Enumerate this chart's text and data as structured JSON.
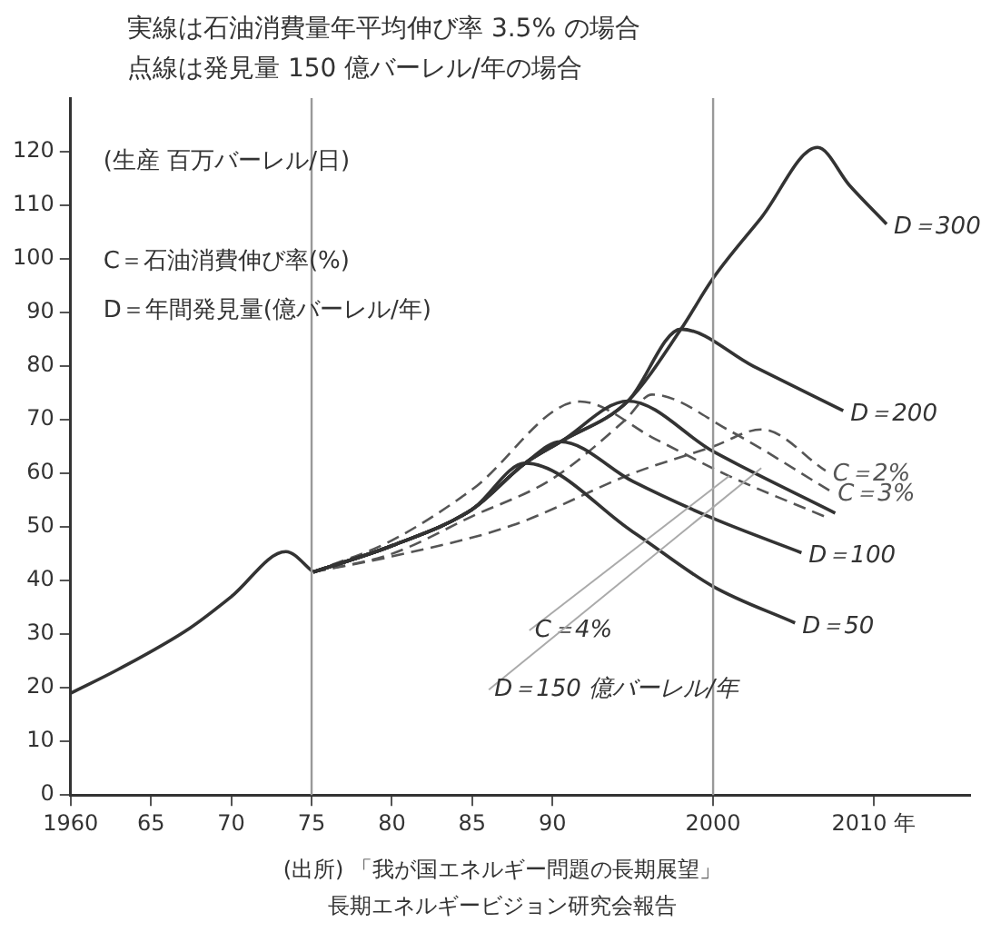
{
  "chart_data": {
    "type": "line",
    "title": "実線は石油消費量年平均伸び率 3.5% の場合",
    "subtitle": "点線は発見量 150 億バーレル/年の場合",
    "ylabel": "(生産 百万バーレル/日)",
    "annotations": [
      "C＝石油消費伸び率(%)",
      "D＝年間発見量(億バーレル/年)",
      "(出所) 「我が国エネルギー問題の長期展望」",
      "長期エネルギービジョン研究会報告",
      {
        "text": "C＝4%",
        "x": 2001,
        "y": 59.5
      },
      {
        "text": "D＝150 億バーレル/年",
        "x": 2003,
        "y": 61
      }
    ],
    "xlim": [
      1960,
      2016
    ],
    "ylim": [
      0,
      130
    ],
    "xticks": [
      1960,
      {
        "value": 1965,
        "label": "65"
      },
      {
        "value": 1970,
        "label": "70"
      },
      {
        "value": 1975,
        "label": "75"
      },
      {
        "value": 1980,
        "label": "80"
      },
      {
        "value": 1985,
        "label": "85"
      },
      {
        "value": 1990,
        "label": "90"
      },
      2000,
      {
        "value": 2010,
        "label": "2010 年"
      }
    ],
    "yticks": [
      0,
      10,
      20,
      30,
      40,
      50,
      60,
      70,
      80,
      90,
      100,
      110,
      120
    ],
    "grid": false,
    "legend": false,
    "marker": "none",
    "ref_lines": [
      {
        "axis": "x",
        "value": 1975,
        "color": "#999999"
      },
      {
        "axis": "x",
        "value": 2000,
        "color": "#999999"
      }
    ],
    "series": [
      {
        "color": "#333333",
        "line_style": "solid",
        "x": [
          1960,
          1963,
          1967.4,
          1970,
          1973.4,
          1975.1
        ],
        "values": [
          19,
          23.5,
          31.1,
          37,
          45.4,
          41.6
        ]
      },
      {
        "name": "D＝300",
        "color": "#333333",
        "line_style": "solid",
        "x": [
          1975.1,
          1980,
          1985,
          1988.3,
          1990.5,
          1994.7,
          1998,
          2000,
          2003,
          2006.5,
          2008.5,
          2010.8
        ],
        "values": [
          41.6,
          46.5,
          53.3,
          61.9,
          65.9,
          73.5,
          86.9,
          96.4,
          107.7,
          120.8,
          113.7,
          106.5
        ]
      },
      {
        "name": "D＝200",
        "color": "#333333",
        "line_style": "solid",
        "x": [
          1975.1,
          1980,
          1985,
          1988.3,
          1990.5,
          1994.7,
          1998,
          2002.5,
          2008.1
        ],
        "values": [
          41.6,
          46.5,
          53.3,
          61.9,
          65.9,
          73.5,
          86.9,
          80,
          71.7
        ]
      },
      {
        "color": "#333333",
        "line_style": "solid",
        "x": [
          1975.1,
          1980,
          1985,
          1988.3,
          1990.5,
          1994.7,
          2000,
          2007.6
        ],
        "values": [
          41.6,
          46.5,
          53.3,
          61.9,
          65.9,
          73.5,
          64.1,
          52.6
        ]
      },
      {
        "name": "D＝100",
        "color": "#333333",
        "line_style": "solid",
        "x": [
          1975.1,
          1980,
          1985,
          1988.3,
          1990.5,
          1995,
          2000,
          2005.5
        ],
        "values": [
          41.6,
          46.5,
          53.3,
          61.9,
          65.9,
          58.5,
          51.6,
          45.2
        ]
      },
      {
        "name": "D＝50",
        "color": "#333333",
        "line_style": "solid",
        "x": [
          1975.1,
          1980,
          1985,
          1988.3,
          1995,
          2000,
          2005.1
        ],
        "values": [
          41.6,
          46.5,
          53.3,
          61.9,
          49.1,
          38.9,
          32.1
        ]
      },
      {
        "name": "C＝2%",
        "color": "#555555",
        "line_style": "dashed",
        "x": [
          1975.1,
          1980,
          1987.5,
          1995,
          2000,
          2003,
          2007
        ],
        "values": [
          41.6,
          44.5,
          50.3,
          60,
          65,
          68.2,
          60.5
        ]
      },
      {
        "name": "C＝3%",
        "color": "#555555",
        "line_style": "dashed",
        "x": [
          1975.1,
          1980,
          1985,
          1990,
          1994.5,
          1996.2,
          2001,
          2007.3
        ],
        "values": [
          41.6,
          45,
          52,
          59,
          69.9,
          74.7,
          68,
          56.7
        ]
      },
      {
        "color": "#555555",
        "line_style": "dashed",
        "x": [
          1975.1,
          1980,
          1985,
          1991.7,
          1996.4,
          2001,
          2006.9
        ],
        "values": [
          41.6,
          47.5,
          57,
          73.4,
          66.4,
          59.5,
          52
        ]
      }
    ]
  }
}
